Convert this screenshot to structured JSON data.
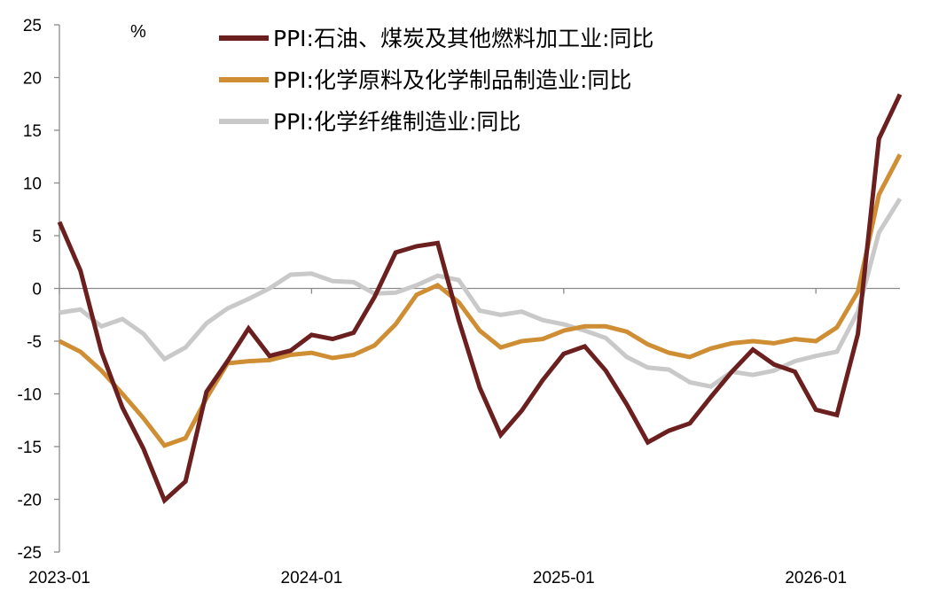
{
  "chart_data": {
    "type": "line",
    "title": "",
    "xlabel": "",
    "ylabel": "",
    "unit": "%",
    "ylim": [
      -25,
      25
    ],
    "yticks": [
      25,
      20,
      15,
      10,
      5,
      0,
      -5,
      -10,
      -15,
      -20,
      -25
    ],
    "yticks_display": [
      "25",
      "20",
      "15",
      "10",
      "5",
      "0",
      "-5",
      "-10",
      "-15",
      "-20",
      "-25"
    ],
    "xticks": [
      "2023-01",
      "2024-01",
      "2025-01",
      "2026-01"
    ],
    "x_start": "2023-01",
    "x": [
      "2023-01",
      "2023-02",
      "2023-03",
      "2023-04",
      "2023-05",
      "2023-06",
      "2023-07",
      "2023-08",
      "2023-09",
      "2023-10",
      "2023-11",
      "2023-12",
      "2024-01",
      "2024-02",
      "2024-03",
      "2024-04",
      "2024-05",
      "2024-06",
      "2024-07",
      "2024-08",
      "2024-09",
      "2024-10",
      "2024-11",
      "2024-12",
      "2025-01",
      "2025-02",
      "2025-03",
      "2025-04",
      "2025-05",
      "2025-06",
      "2025-07",
      "2025-08",
      "2025-09",
      "2025-10",
      "2025-11",
      "2025-12",
      "2026-01",
      "2026-02",
      "2026-03",
      "2026-04",
      "2026-05"
    ],
    "grid": false,
    "legend_position": "top",
    "series": [
      {
        "name": "PPI:石油、煤炭及其他燃料加工业:同比",
        "color": "#6b1f1f",
        "values": [
          6.3,
          1.7,
          -6.0,
          -11.3,
          -15.2,
          -20.1,
          -18.3,
          -9.8,
          -6.9,
          -3.8,
          -6.4,
          -5.9,
          -4.4,
          -4.8,
          -4.2,
          -0.8,
          3.4,
          4.0,
          4.3,
          -3.0,
          -9.4,
          -13.9,
          -11.6,
          -8.7,
          -6.2,
          -5.5,
          -7.8,
          -11.0,
          -14.6,
          -13.5,
          -12.8,
          -10.3,
          -7.9,
          -5.8,
          -7.2,
          -7.9,
          -11.5,
          -12.0,
          -4.3,
          14.2,
          18.4
        ]
      },
      {
        "name": "PPI:化学原料及化学制品制造业:同比",
        "color": "#d08e34",
        "values": [
          -5.0,
          -6.0,
          -7.8,
          -10.0,
          -12.3,
          -14.9,
          -14.2,
          -10.4,
          -7.1,
          -6.9,
          -6.8,
          -6.3,
          -6.1,
          -6.6,
          -6.3,
          -5.4,
          -3.4,
          -0.6,
          0.3,
          -1.3,
          -4.0,
          -5.6,
          -5.0,
          -4.8,
          -4.0,
          -3.6,
          -3.6,
          -4.1,
          -5.3,
          -6.1,
          -6.5,
          -5.7,
          -5.2,
          -5.0,
          -5.2,
          -4.8,
          -5.0,
          -3.7,
          -0.3,
          8.9,
          12.7
        ]
      },
      {
        "name": "PPI:化学纤维制造业:同比",
        "color": "#c9c9c9",
        "values": [
          -2.3,
          -2.0,
          -3.6,
          -2.9,
          -4.3,
          -6.7,
          -5.6,
          -3.3,
          -1.9,
          -1.0,
          0.0,
          1.3,
          1.4,
          0.7,
          0.6,
          -0.5,
          -0.4,
          0.3,
          1.2,
          0.8,
          -2.1,
          -2.5,
          -2.2,
          -3.0,
          -3.4,
          -4.0,
          -4.7,
          -6.5,
          -7.5,
          -7.7,
          -8.9,
          -9.3,
          -7.9,
          -8.2,
          -7.8,
          -6.9,
          -6.4,
          -6.0,
          -2.2,
          5.3,
          8.5
        ]
      }
    ]
  }
}
